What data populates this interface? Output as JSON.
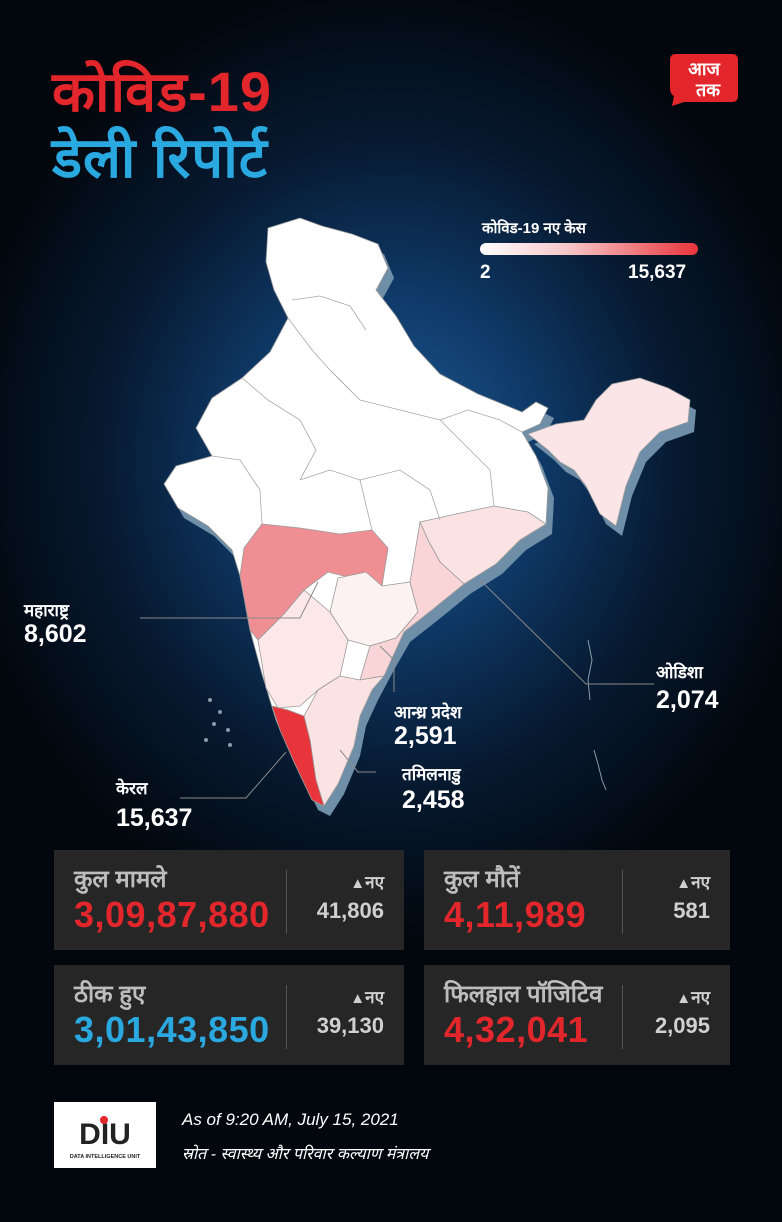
{
  "header": {
    "title_line1": "कोविड-19",
    "title_line2": "डेली रिपोर्ट",
    "logo_text_top": "आज",
    "logo_text_bottom": "तक"
  },
  "legend": {
    "title": "कोविड-19 नए केस",
    "min": "2",
    "max": "15,637",
    "color_low": "#ffffff",
    "color_high": "#e8343b"
  },
  "state_labels": [
    {
      "name": "महाराष्ट्र",
      "value": "8,602"
    },
    {
      "name": "केरल",
      "value": "15,637"
    },
    {
      "name": "आन्ध्र प्रदेश",
      "value": "2,591"
    },
    {
      "name": "तमिलनाडु",
      "value": "2,458"
    },
    {
      "name": "ओडिशा",
      "value": "2,074"
    }
  ],
  "stats": {
    "new_label": "नए",
    "total_cases": {
      "label": "कुल मामले",
      "value": "3,09,87,880",
      "new": "41,806"
    },
    "total_deaths": {
      "label": "कुल मौतें",
      "value": "4,11,989",
      "new": "581"
    },
    "recovered": {
      "label": "ठीक हुए",
      "value": "3,01,43,850",
      "new": "39,130"
    },
    "active": {
      "label": "फिलहाल पॉजिटिव",
      "value": "4,32,041",
      "new": "2,095"
    }
  },
  "footer": {
    "as_of": "As of 9:20 AM, July 15, 2021",
    "source": "स्रोत - स्वास्थ्य और परिवार कल्याण मंत्रालय",
    "diu_logo": "DIU",
    "diu_sub": "DATA INTELLIGENCE UNIT"
  },
  "colors": {
    "red": "#e2262b",
    "blue": "#2aa8e0",
    "card_bg": "#262626"
  }
}
